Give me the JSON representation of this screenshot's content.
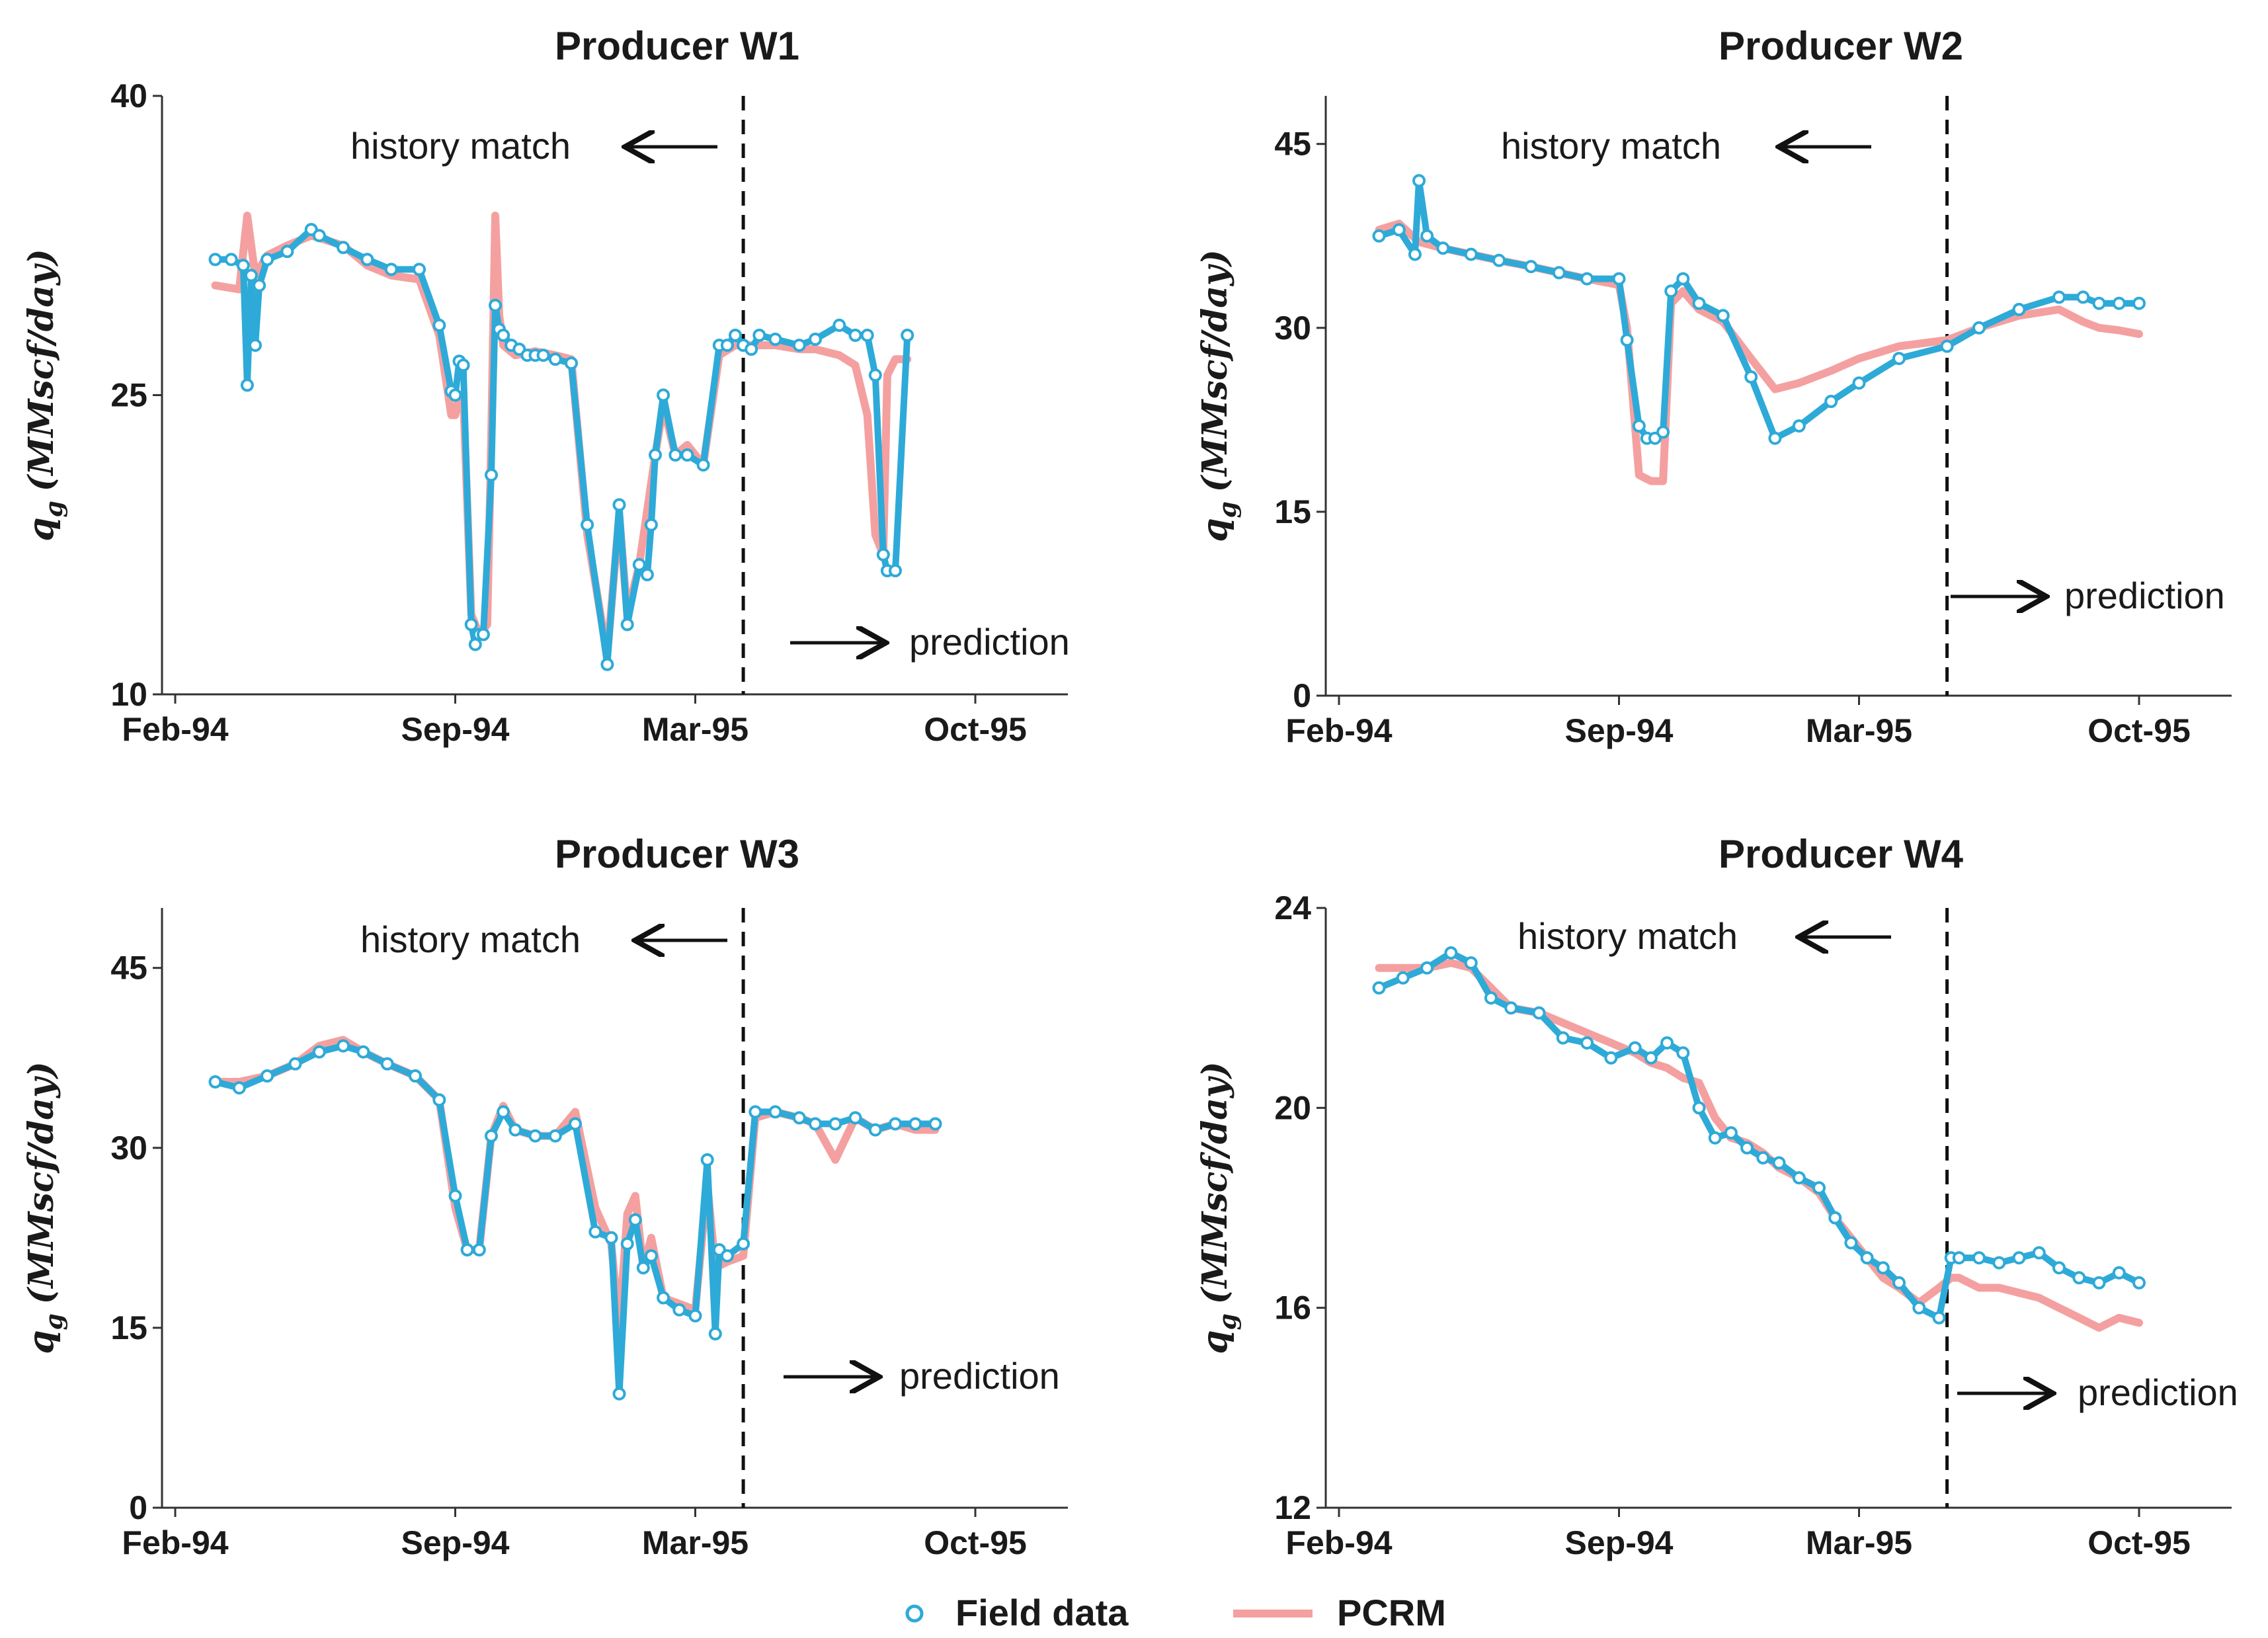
{
  "figure": {
    "y_axis_label": "q",
    "y_axis_subscript": "g",
    "y_axis_units": "(MMscf/day)"
  },
  "legend": {
    "field_label": "Field data",
    "pcrm_label": "PCRM",
    "field_icon": "circle-marker-icon",
    "pcrm_icon": "line-marker-icon",
    "field_color": "#2eaad8",
    "pcrm_color": "#f4a0a0"
  },
  "chart_data": [
    {
      "type": "line",
      "title": "Producer W1",
      "xlabel": "",
      "ylabel": "q_g (MMscf/day)",
      "x_ticks": [
        "Feb-94",
        "Sep-94",
        "Mar-95",
        "Oct-95"
      ],
      "ylim": [
        10,
        40
      ],
      "y_ticks": [
        10,
        25,
        40
      ],
      "annotations": {
        "history": "history match",
        "prediction": "prediction",
        "history_arrow": "left-arrow-icon",
        "prediction_arrow": "right-arrow-icon"
      },
      "split_x": 14.2,
      "series": [
        {
          "name": "Field data",
          "x": [
            1.0,
            1.4,
            1.7,
            1.8,
            1.9,
            2.0,
            2.1,
            2.3,
            2.8,
            3.4,
            3.6,
            4.2,
            4.8,
            5.4,
            6.1,
            6.6,
            6.9,
            7.0,
            7.1,
            7.2,
            7.4,
            7.5,
            7.6,
            7.7,
            7.9,
            8.0,
            8.1,
            8.2,
            8.4,
            8.6,
            8.8,
            9.0,
            9.2,
            9.5,
            9.9,
            10.3,
            10.8,
            11.1,
            11.3,
            11.6,
            11.8,
            11.9,
            12.0,
            12.2,
            12.5,
            12.8,
            13.2,
            13.6,
            13.8,
            14.0,
            14.2,
            14.4,
            14.6,
            15.0,
            15.6,
            16.0,
            16.6,
            17.0,
            17.3,
            17.5,
            17.7,
            17.8,
            18.0,
            18.3
          ],
          "y": [
            31.8,
            31.8,
            31.5,
            25.5,
            31.0,
            27.5,
            30.5,
            31.8,
            32.2,
            33.3,
            33.0,
            32.4,
            31.8,
            31.3,
            31.3,
            28.5,
            25.2,
            25.0,
            26.7,
            26.5,
            13.5,
            12.5,
            13.0,
            13.0,
            21.0,
            29.5,
            28.3,
            28.0,
            27.5,
            27.3,
            27.0,
            27.0,
            27.0,
            26.8,
            26.6,
            18.5,
            11.5,
            19.5,
            13.5,
            16.5,
            16.0,
            18.5,
            22.0,
            25.0,
            22.0,
            22.0,
            21.5,
            27.5,
            27.5,
            28.0,
            27.5,
            27.3,
            28.0,
            27.8,
            27.5,
            27.8,
            28.5,
            28.0,
            28.0,
            26.0,
            17.0,
            16.2,
            16.2,
            28.0
          ]
        },
        {
          "name": "PCRM",
          "x": [
            1.0,
            1.6,
            1.8,
            2.0,
            2.3,
            2.8,
            3.4,
            4.2,
            4.8,
            5.4,
            6.1,
            6.6,
            6.9,
            7.0,
            7.1,
            7.2,
            7.4,
            7.6,
            7.8,
            7.9,
            8.0,
            8.1,
            8.2,
            8.5,
            9.0,
            9.5,
            9.9,
            10.3,
            10.8,
            11.1,
            11.3,
            11.6,
            12.0,
            12.2,
            12.5,
            12.8,
            13.2,
            13.6,
            14.0,
            14.5,
            15.0,
            15.6,
            16.0,
            16.6,
            17.0,
            17.3,
            17.5,
            17.7,
            17.8,
            18.0,
            18.3
          ],
          "y": [
            30.5,
            30.3,
            34.0,
            31.0,
            32.0,
            32.5,
            33.0,
            32.5,
            31.5,
            31.0,
            30.8,
            28.0,
            24.0,
            24.0,
            25.0,
            25.0,
            14.0,
            13.0,
            13.5,
            23.0,
            34.0,
            29.0,
            27.5,
            27.0,
            27.2,
            27.0,
            26.8,
            18.0,
            12.0,
            19.0,
            14.0,
            16.5,
            22.0,
            24.5,
            22.0,
            22.5,
            21.5,
            27.0,
            27.5,
            27.5,
            27.5,
            27.3,
            27.3,
            27.0,
            26.5,
            24.0,
            18.0,
            17.0,
            26.0,
            26.8,
            26.8
          ]
        }
      ]
    },
    {
      "type": "line",
      "title": "Producer W2",
      "xlabel": "",
      "ylabel": "q_g (MMscf/day)",
      "x_ticks": [
        "Feb-94",
        "Sep-94",
        "Mar-95",
        "Oct-95"
      ],
      "ylim": [
        0,
        50
      ],
      "y_ticks": [
        0,
        15,
        30,
        45
      ],
      "annotations": {
        "history": "history match",
        "prediction": "prediction",
        "history_arrow": "left-arrow-icon",
        "prediction_arrow": "right-arrow-icon"
      },
      "split_x": 15.2,
      "series": [
        {
          "name": "Field data",
          "x": [
            1.0,
            1.5,
            1.9,
            2.0,
            2.2,
            2.6,
            3.3,
            4.0,
            4.8,
            5.5,
            6.2,
            7.0,
            7.2,
            7.5,
            7.7,
            7.9,
            8.1,
            8.3,
            8.6,
            9.0,
            9.6,
            10.3,
            10.9,
            11.5,
            12.3,
            13.0,
            14.0,
            15.2,
            16.0,
            17.0,
            18.0,
            18.6,
            19.0,
            19.5,
            20.0
          ],
          "y": [
            37.5,
            38.0,
            36.0,
            42.0,
            37.5,
            36.5,
            36.0,
            35.5,
            35.0,
            34.5,
            34.0,
            34.0,
            29.0,
            22.0,
            21.0,
            21.0,
            21.5,
            33.0,
            34.0,
            32.0,
            31.0,
            26.0,
            21.0,
            22.0,
            24.0,
            25.5,
            27.5,
            28.5,
            30.0,
            31.5,
            32.5,
            32.5,
            32.0,
            32.0,
            32.0
          ]
        },
        {
          "name": "PCRM",
          "x": [
            1.0,
            1.5,
            2.0,
            2.6,
            3.3,
            4.0,
            4.8,
            5.5,
            6.2,
            7.0,
            7.2,
            7.5,
            7.8,
            8.1,
            8.3,
            8.6,
            9.0,
            9.6,
            10.3,
            10.9,
            11.5,
            12.3,
            13.0,
            14.0,
            15.2,
            16.0,
            17.0,
            18.0,
            18.6,
            19.0,
            19.5,
            20.0
          ],
          "y": [
            38.0,
            38.5,
            37.0,
            36.5,
            36.0,
            35.5,
            35.0,
            34.5,
            34.0,
            33.5,
            30.0,
            18.0,
            17.5,
            17.5,
            32.0,
            33.0,
            31.5,
            30.5,
            27.5,
            25.0,
            25.5,
            26.5,
            27.5,
            28.5,
            29.0,
            30.0,
            31.0,
            31.5,
            30.5,
            30.0,
            29.8,
            29.5
          ]
        }
      ]
    },
    {
      "type": "line",
      "title": "Producer W3",
      "xlabel": "",
      "ylabel": "q_g (MMscf/day)",
      "x_ticks": [
        "Feb-94",
        "Sep-94",
        "Mar-95",
        "Oct-95"
      ],
      "ylim": [
        0,
        50
      ],
      "y_ticks": [
        0,
        15,
        30,
        45
      ],
      "annotations": {
        "history": "history match",
        "prediction": "prediction",
        "history_arrow": "left-arrow-icon",
        "prediction_arrow": "right-arrow-icon"
      },
      "split_x": 14.2,
      "series": [
        {
          "name": "Field data",
          "x": [
            1.0,
            1.6,
            2.3,
            3.0,
            3.6,
            4.2,
            4.7,
            5.3,
            6.0,
            6.6,
            7.0,
            7.3,
            7.6,
            7.9,
            8.2,
            8.5,
            9.0,
            9.5,
            10.0,
            10.5,
            10.9,
            11.1,
            11.3,
            11.5,
            11.7,
            11.9,
            12.2,
            12.6,
            13.0,
            13.3,
            13.5,
            13.6,
            13.8,
            14.2,
            14.5,
            15.0,
            15.6,
            16.0,
            16.5,
            17.0,
            17.5,
            18.0,
            18.5,
            19.0
          ],
          "y": [
            35.5,
            35.0,
            36.0,
            37.0,
            38.0,
            38.5,
            38.0,
            37.0,
            36.0,
            34.0,
            26.0,
            21.5,
            21.5,
            31.0,
            33.0,
            31.5,
            31.0,
            31.0,
            32.0,
            23.0,
            22.5,
            9.5,
            22.0,
            24.0,
            20.0,
            21.0,
            17.5,
            16.5,
            16.0,
            29.0,
            14.5,
            21.5,
            21.0,
            22.0,
            33.0,
            33.0,
            32.5,
            32.0,
            32.0,
            32.5,
            31.5,
            32.0,
            32.0,
            32.0
          ]
        },
        {
          "name": "PCRM",
          "x": [
            1.0,
            1.6,
            2.3,
            3.0,
            3.6,
            4.2,
            4.7,
            5.3,
            6.0,
            6.6,
            7.0,
            7.3,
            7.6,
            7.9,
            8.2,
            8.5,
            9.0,
            9.5,
            10.0,
            10.5,
            10.9,
            11.1,
            11.3,
            11.5,
            11.7,
            11.9,
            12.2,
            12.6,
            13.0,
            13.3,
            13.5,
            13.8,
            14.2,
            14.5,
            15.0,
            15.6,
            16.0,
            16.5,
            17.0,
            17.5,
            18.0,
            18.5,
            19.0
          ],
          "y": [
            35.5,
            35.5,
            36.0,
            37.0,
            38.5,
            39.0,
            38.0,
            37.0,
            36.0,
            34.0,
            25.0,
            21.5,
            21.5,
            31.0,
            33.5,
            31.5,
            31.0,
            31.0,
            33.0,
            25.0,
            22.0,
            15.0,
            24.5,
            26.0,
            20.0,
            22.5,
            17.5,
            17.0,
            16.5,
            27.0,
            20.0,
            20.5,
            21.0,
            32.5,
            33.0,
            32.5,
            32.0,
            29.0,
            32.5,
            31.5,
            32.0,
            31.5,
            31.5
          ]
        }
      ]
    },
    {
      "type": "line",
      "title": "Producer W4",
      "xlabel": "",
      "ylabel": "q_g (MMscf/day)",
      "x_ticks": [
        "Feb-94",
        "Sep-94",
        "Mar-95",
        "Oct-95"
      ],
      "ylim": [
        12,
        24
      ],
      "y_ticks": [
        12,
        16,
        20,
        24
      ],
      "annotations": {
        "history": "history match",
        "prediction": "prediction",
        "history_arrow": "left-arrow-icon",
        "prediction_arrow": "right-arrow-icon"
      },
      "split_x": 15.2,
      "series": [
        {
          "name": "Field data",
          "x": [
            1.0,
            1.6,
            2.2,
            2.8,
            3.3,
            3.8,
            4.3,
            5.0,
            5.6,
            6.2,
            6.8,
            7.4,
            7.8,
            8.2,
            8.6,
            9.0,
            9.4,
            9.8,
            10.2,
            10.6,
            11.0,
            11.5,
            12.0,
            12.4,
            12.8,
            13.2,
            13.6,
            14.0,
            14.5,
            15.0,
            15.3,
            15.5,
            16.0,
            16.5,
            17.0,
            17.5,
            18.0,
            18.5,
            19.0,
            19.5,
            20.0
          ],
          "y": [
            22.4,
            22.6,
            22.8,
            23.1,
            22.9,
            22.2,
            22.0,
            21.9,
            21.4,
            21.3,
            21.0,
            21.2,
            21.0,
            21.3,
            21.1,
            20.0,
            19.4,
            19.5,
            19.2,
            19.0,
            18.9,
            18.6,
            18.4,
            17.8,
            17.3,
            17.0,
            16.8,
            16.5,
            16.0,
            15.8,
            17.0,
            17.0,
            17.0,
            16.9,
            17.0,
            17.1,
            16.8,
            16.6,
            16.5,
            16.7,
            16.5
          ]
        },
        {
          "name": "PCRM",
          "x": [
            1.0,
            1.6,
            2.2,
            2.8,
            3.3,
            3.8,
            4.3,
            5.0,
            5.6,
            6.2,
            6.8,
            7.4,
            7.8,
            8.2,
            8.6,
            9.0,
            9.4,
            9.8,
            10.2,
            10.6,
            11.0,
            11.5,
            12.0,
            12.4,
            12.8,
            13.2,
            13.6,
            14.0,
            14.5,
            15.0,
            15.3,
            15.5,
            16.0,
            16.5,
            17.0,
            17.5,
            18.0,
            18.5,
            19.0,
            19.5,
            20.0
          ],
          "y": [
            22.8,
            22.8,
            22.8,
            22.9,
            22.8,
            22.4,
            22.0,
            21.9,
            21.7,
            21.5,
            21.3,
            21.1,
            20.9,
            20.8,
            20.6,
            20.5,
            19.8,
            19.4,
            19.3,
            19.1,
            18.8,
            18.6,
            18.3,
            17.8,
            17.4,
            17.0,
            16.6,
            16.4,
            16.1,
            16.4,
            16.6,
            16.6,
            16.4,
            16.4,
            16.3,
            16.2,
            16.0,
            15.8,
            15.6,
            15.8,
            15.7
          ]
        }
      ]
    }
  ]
}
